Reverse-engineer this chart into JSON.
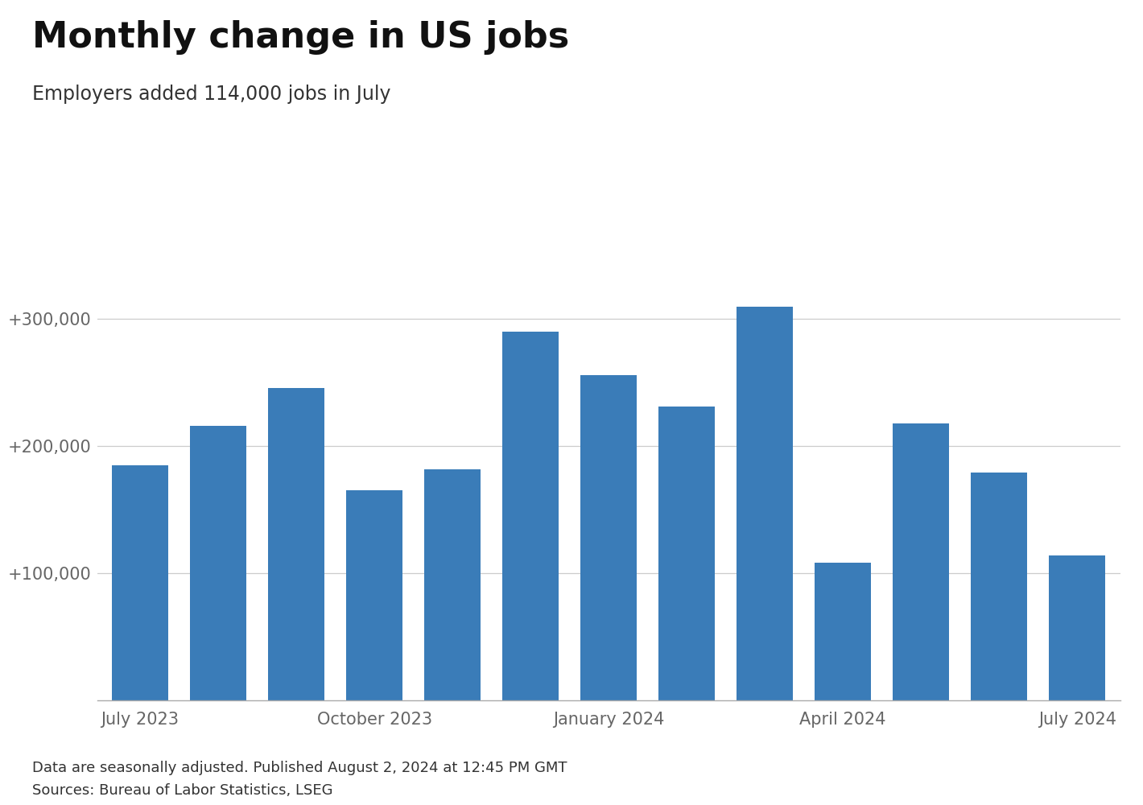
{
  "title": "Monthly change in US jobs",
  "subtitle": "Employers added 114,000 jobs in July",
  "footnote1": "Data are seasonally adjusted. Published August 2, 2024 at 12:45 PM GMT",
  "footnote2": "Sources: Bureau of Labor Statistics, LSEG",
  "values": [
    185000,
    216000,
    246000,
    165000,
    182000,
    290000,
    256000,
    231000,
    310000,
    108000,
    218000,
    179000,
    114000
  ],
  "bar_color": "#3a7cb8",
  "ylim": [
    0,
    380000
  ],
  "yticks": [
    100000,
    200000,
    300000
  ],
  "ytick_labels": [
    "+100,000",
    "+200,000",
    "+300,000"
  ],
  "xtick_positions": [
    0,
    3,
    6,
    9,
    12
  ],
  "xtick_labels": [
    "July 2023",
    "October 2023",
    "January 2024",
    "April 2024",
    "July 2024"
  ],
  "background_color": "#ffffff",
  "grid_color": "#cccccc",
  "title_fontsize": 32,
  "subtitle_fontsize": 17,
  "tick_fontsize": 15,
  "footnote_fontsize": 13
}
